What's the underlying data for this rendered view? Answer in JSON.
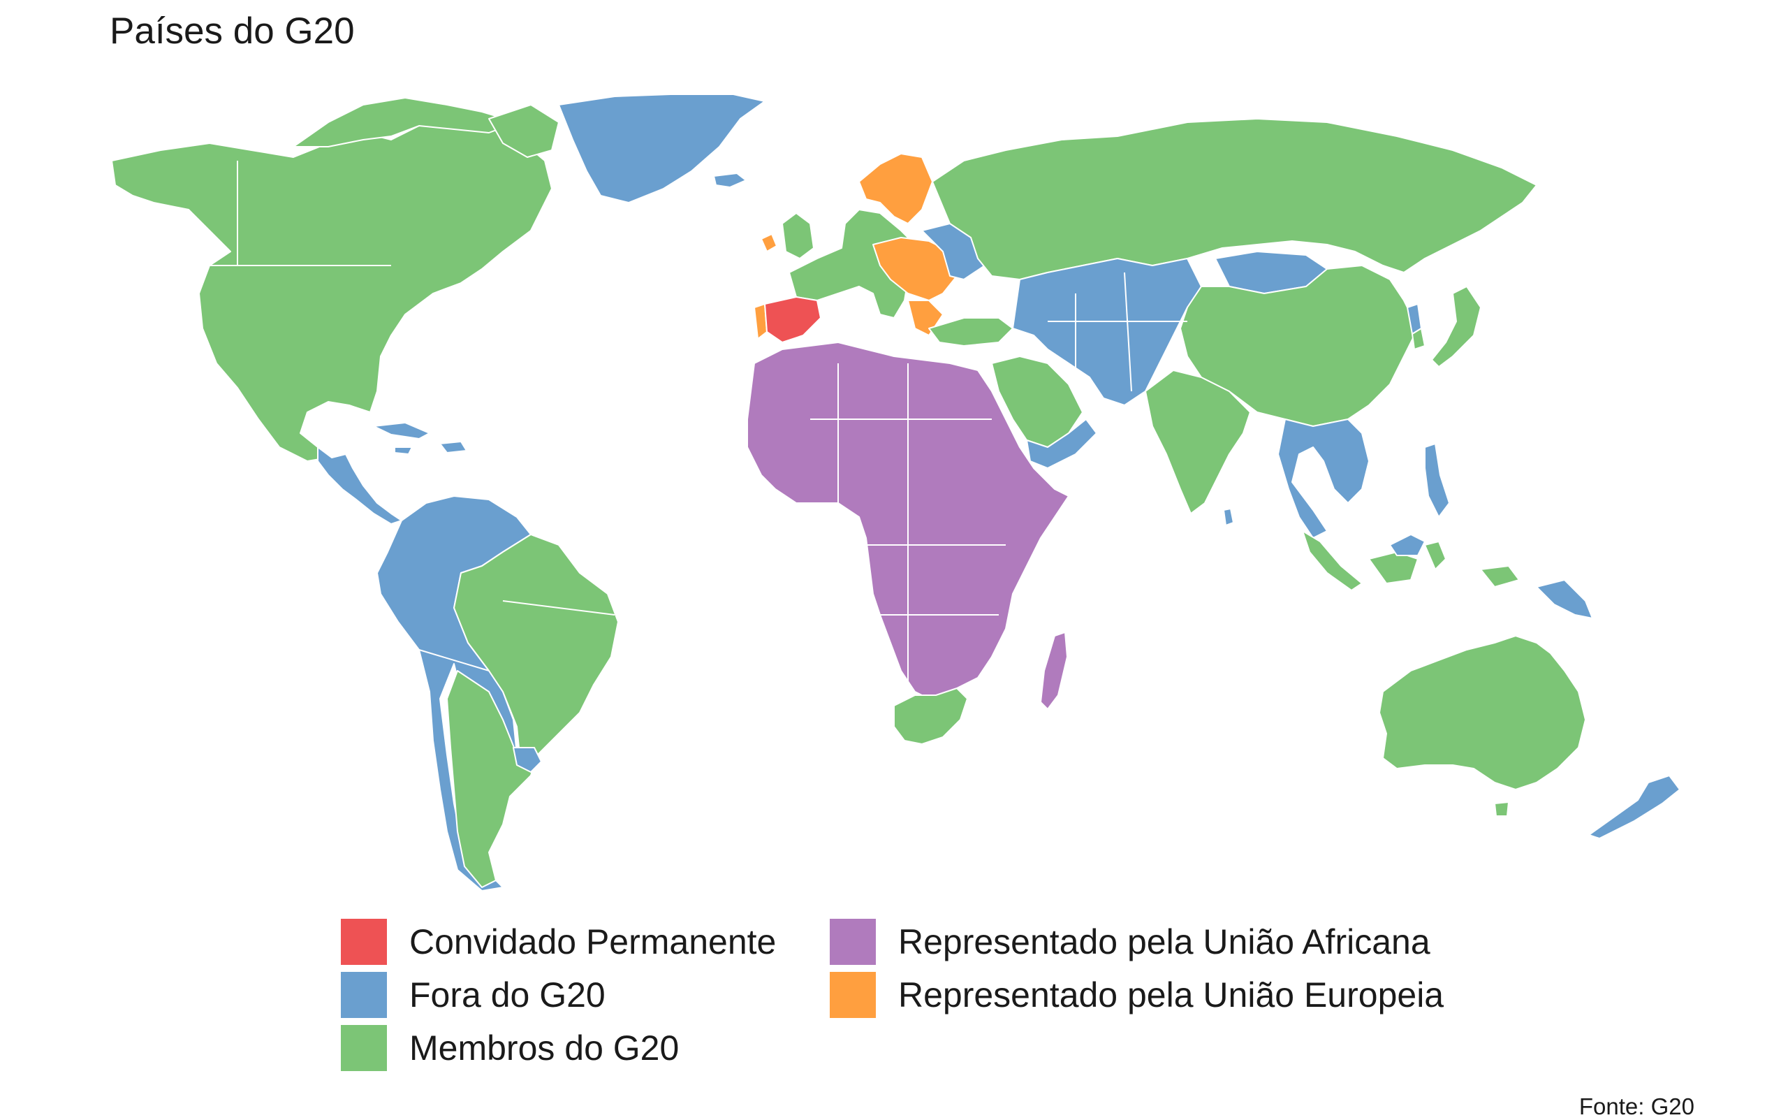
{
  "title": "Países do G20",
  "caption": "Fonte: G20",
  "colors": {
    "convidado": "#EE5254",
    "fora": "#6A9FCF",
    "membros": "#7CC576",
    "uniao_africana": "#B07BBD",
    "uniao_europeia": "#FF9F3F",
    "border": "#FFFFFF"
  },
  "legend": {
    "items": [
      {
        "label": "Convidado Permanente",
        "color": "#EE5254"
      },
      {
        "label": "Fora do G20",
        "color": "#6A9FCF"
      },
      {
        "label": "Membros do G20",
        "color": "#7CC576"
      },
      {
        "label": "Representado pela União Africana",
        "color": "#B07BBD"
      },
      {
        "label": "Representado pela União Europeia",
        "color": "#FF9F3F"
      }
    ]
  }
}
